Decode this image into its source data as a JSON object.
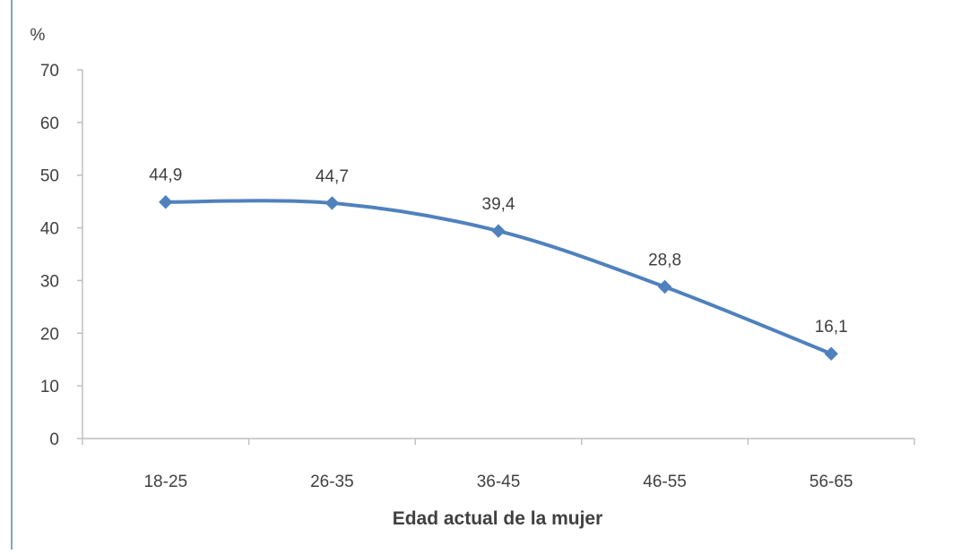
{
  "chart_data": {
    "type": "line",
    "categories": [
      "18-25",
      "26-35",
      "36-45",
      "46-55",
      "56-65"
    ],
    "series": [
      {
        "values": [
          44.9,
          44.7,
          39.4,
          28.8,
          16.1
        ],
        "labels": [
          "44,9",
          "44,7",
          "39,4",
          "28,8",
          "16,1"
        ],
        "color": "#4f81bd",
        "marker": "diamond"
      }
    ],
    "ylabel": "%",
    "xlabel": "Edad actual de la mujer",
    "ylim": [
      0,
      70
    ],
    "yticks": [
      0,
      10,
      20,
      30,
      40,
      50,
      60,
      70
    ],
    "grid": false,
    "smooth": true,
    "colors": {
      "axis": "#bfbfbf",
      "text": "#404040",
      "border": "#7fa7c9"
    }
  }
}
